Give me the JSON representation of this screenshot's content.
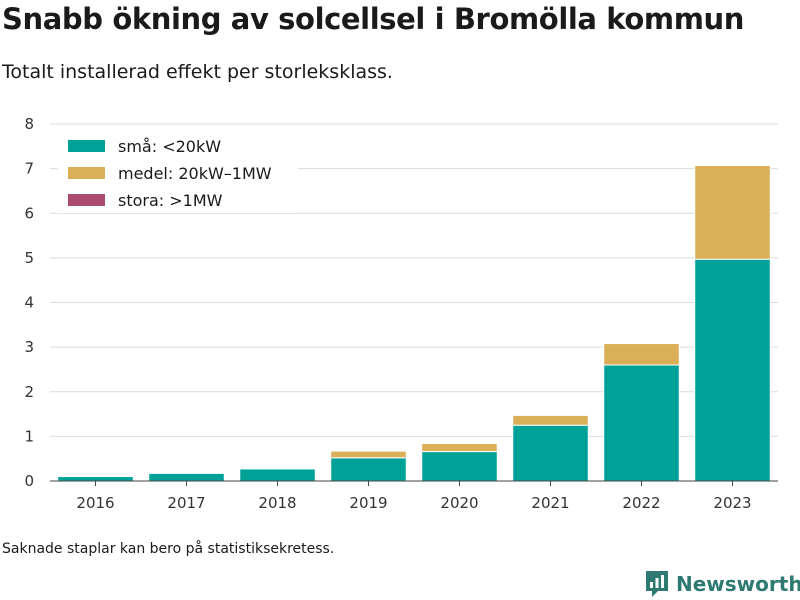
{
  "chart_data": {
    "type": "bar",
    "stacked": true,
    "title": "Snabb ökning av solcellsel i Bromölla kommun",
    "subtitle": "Totalt installerad effekt per storleksklass.",
    "categories": [
      "2016",
      "2017",
      "2018",
      "2019",
      "2020",
      "2021",
      "2022",
      "2023"
    ],
    "series": [
      {
        "name": "små: <20kW",
        "color": "#00a197",
        "values": [
          0.1,
          0.17,
          0.27,
          0.52,
          0.66,
          1.25,
          2.6,
          4.97
        ]
      },
      {
        "name": "medel: 20kW–1MW",
        "color": "#dbaf58",
        "values": [
          0,
          0,
          0,
          0.15,
          0.18,
          0.22,
          0.48,
          2.1
        ]
      },
      {
        "name": "stora: >1MW",
        "color": "#ad4a6f",
        "values": [
          0,
          0,
          0,
          0,
          0,
          0,
          0,
          0
        ]
      }
    ],
    "ylim": [
      0,
      8
    ],
    "yticks": [
      0,
      1,
      2,
      3,
      4,
      5,
      6,
      7,
      8
    ],
    "grid": true,
    "legend": "top-left",
    "xlabel": "",
    "ylabel": ""
  },
  "footer": {
    "note": "Saknade staplar kan bero på statistiksekretess.",
    "brand": "Newsworthy",
    "brand_icon": "newsworthy-logo-icon"
  }
}
